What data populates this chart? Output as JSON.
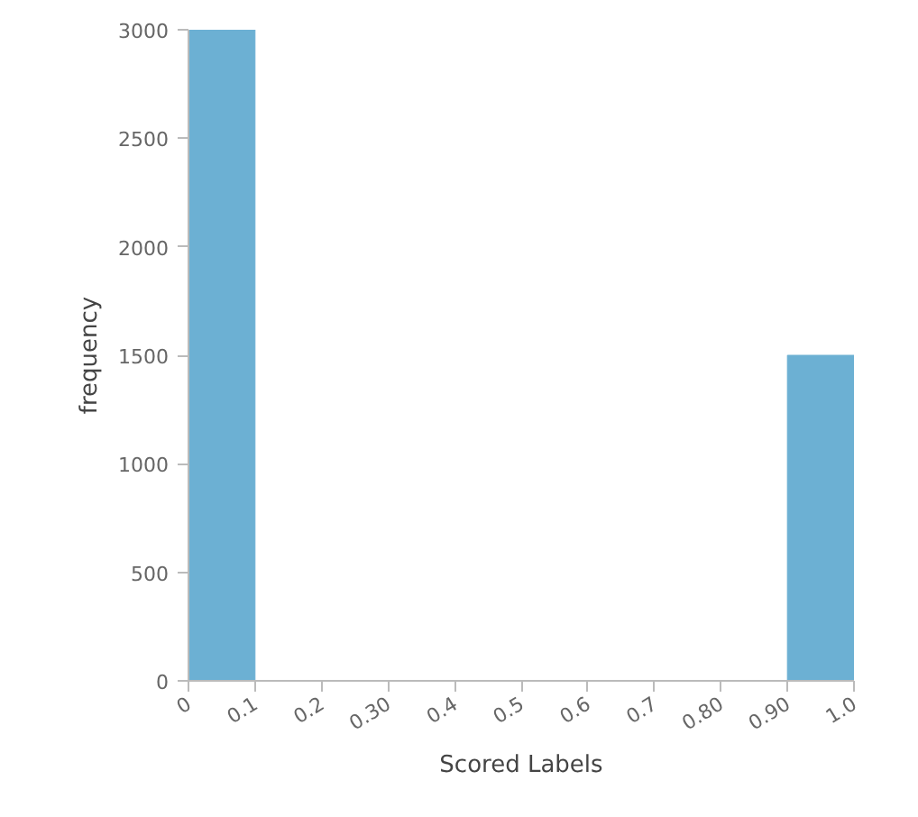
{
  "chart_data": {
    "type": "histogram",
    "xlabel": "Scored Labels",
    "ylabel": "frequency",
    "bins": [
      0,
      0.1,
      0.2,
      0.3,
      0.4,
      0.5,
      0.6,
      0.7,
      0.8,
      0.9,
      1.0
    ],
    "values": [
      3000,
      0,
      0,
      0,
      0,
      0,
      0,
      0,
      0,
      1500
    ],
    "color": "#6cb0d3",
    "xlim": [
      0,
      1.0
    ],
    "ylim": [
      0,
      3000
    ],
    "xticks": [
      0,
      0.1,
      0.2,
      {
        "value": 0.3,
        "label": "0.30"
      },
      0.4,
      0.5,
      0.6,
      0.7,
      {
        "value": 0.8,
        "label": "0.80"
      },
      {
        "value": 0.9,
        "label": "0.90"
      },
      {
        "value": 1.0,
        "label": "1.0"
      }
    ],
    "yticks": [
      0,
      500,
      1000,
      1500,
      2000,
      2500,
      3000
    ],
    "grid": false
  }
}
